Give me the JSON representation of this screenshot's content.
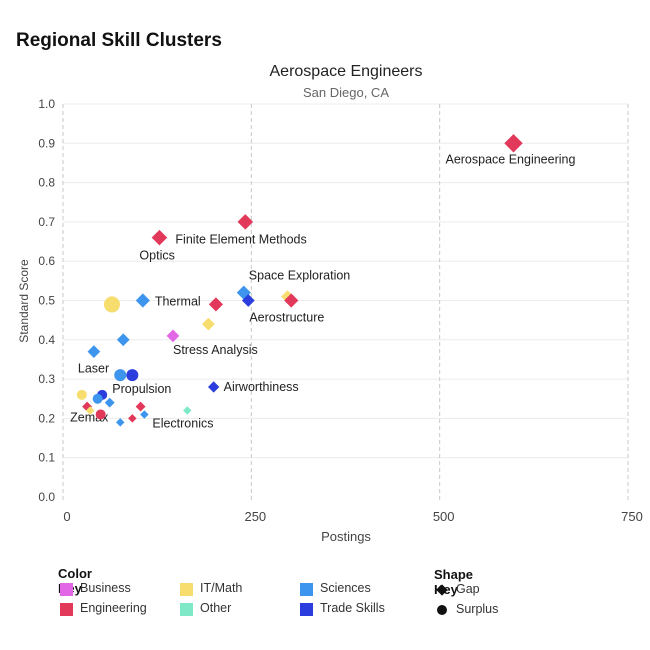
{
  "page_title": "Regional Skill Clusters",
  "chart_data": {
    "type": "scatter",
    "title": "Aerospace Engineers",
    "subtitle": "San Diego, CA",
    "xlabel": "Postings",
    "ylabel": "Standard Score",
    "xlim": [
      0,
      750
    ],
    "ylim": [
      0,
      1.0
    ],
    "xticks": [
      "0",
      "250",
      "500",
      "750"
    ],
    "yticks": [
      "0.0",
      "0.1",
      "0.2",
      "0.3",
      "0.4",
      "0.5",
      "0.6",
      "0.7",
      "0.8",
      "0.9",
      "1.0"
    ],
    "grid": "dashed vertical and horizontal",
    "colors": {
      "Business": "#e267e6",
      "Engineering": "#e2385a",
      "IT/Math": "#f7dd6e",
      "Other": "#7ee8c7",
      "Sciences": "#3d95ee",
      "Trade Skills": "#2b3ddd"
    },
    "points": [
      {
        "x": 598,
        "y": 0.9,
        "cat": "Engineering",
        "shape": "diamond",
        "size": 13,
        "label": "Aerospace Engineering"
      },
      {
        "x": 242,
        "y": 0.7,
        "cat": "Engineering",
        "shape": "diamond",
        "size": 11,
        "label": ""
      },
      {
        "x": 128,
        "y": 0.66,
        "cat": "Engineering",
        "shape": "diamond",
        "size": 11,
        "label": "Finite Element Methods"
      },
      {
        "x": 128,
        "y": 0.66,
        "cat": "Engineering",
        "shape": "none",
        "size": 0,
        "label": "Optics"
      },
      {
        "x": 65,
        "y": 0.49,
        "cat": "IT/Math",
        "shape": "circle",
        "size": 8,
        "label": ""
      },
      {
        "x": 106,
        "y": 0.5,
        "cat": "Sciences",
        "shape": "diamond",
        "size": 10,
        "label": "Thermal"
      },
      {
        "x": 203,
        "y": 0.49,
        "cat": "Engineering",
        "shape": "diamond",
        "size": 10,
        "label": ""
      },
      {
        "x": 193,
        "y": 0.44,
        "cat": "IT/Math",
        "shape": "diamond",
        "size": 9,
        "label": ""
      },
      {
        "x": 240,
        "y": 0.52,
        "cat": "Sciences",
        "shape": "diamond",
        "size": 10,
        "label": "Space Exploration"
      },
      {
        "x": 298,
        "y": 0.51,
        "cat": "IT/Math",
        "shape": "diamond",
        "size": 9,
        "label": ""
      },
      {
        "x": 303,
        "y": 0.5,
        "cat": "Engineering",
        "shape": "diamond",
        "size": 10,
        "label": ""
      },
      {
        "x": 246,
        "y": 0.5,
        "cat": "Trade Skills",
        "shape": "diamond",
        "size": 9,
        "label": "Aerostructure"
      },
      {
        "x": 146,
        "y": 0.41,
        "cat": "Business",
        "shape": "diamond",
        "size": 9,
        "label": "Stress Analysis"
      },
      {
        "x": 80,
        "y": 0.4,
        "cat": "Sciences",
        "shape": "diamond",
        "size": 9,
        "label": ""
      },
      {
        "x": 41,
        "y": 0.37,
        "cat": "Sciences",
        "shape": "diamond",
        "size": 9,
        "label": "Laser"
      },
      {
        "x": 76,
        "y": 0.31,
        "cat": "Sciences",
        "shape": "circle",
        "size": 6,
        "label": ""
      },
      {
        "x": 92,
        "y": 0.31,
        "cat": "Trade Skills",
        "shape": "circle",
        "size": 6,
        "label": "Propulsion"
      },
      {
        "x": 200,
        "y": 0.28,
        "cat": "Trade Skills",
        "shape": "diamond",
        "size": 8,
        "label": "Airworthiness"
      },
      {
        "x": 25,
        "y": 0.26,
        "cat": "IT/Math",
        "shape": "circle",
        "size": 5,
        "label": ""
      },
      {
        "x": 52,
        "y": 0.26,
        "cat": "Trade Skills",
        "shape": "circle",
        "size": 5,
        "label": ""
      },
      {
        "x": 46,
        "y": 0.25,
        "cat": "Sciences",
        "shape": "circle",
        "size": 5,
        "label": ""
      },
      {
        "x": 62,
        "y": 0.24,
        "cat": "Sciences",
        "shape": "diamond",
        "size": 7,
        "label": ""
      },
      {
        "x": 32,
        "y": 0.23,
        "cat": "Engineering",
        "shape": "diamond",
        "size": 7,
        "label": ""
      },
      {
        "x": 103,
        "y": 0.23,
        "cat": "Engineering",
        "shape": "diamond",
        "size": 7,
        "label": ""
      },
      {
        "x": 36,
        "y": 0.22,
        "cat": "IT/Math",
        "shape": "diamond",
        "size": 6,
        "label": "Zemax"
      },
      {
        "x": 50,
        "y": 0.21,
        "cat": "Engineering",
        "shape": "circle",
        "size": 5,
        "label": ""
      },
      {
        "x": 108,
        "y": 0.21,
        "cat": "Sciences",
        "shape": "diamond",
        "size": 6,
        "label": "Electronics"
      },
      {
        "x": 165,
        "y": 0.22,
        "cat": "Other",
        "shape": "diamond",
        "size": 6,
        "label": ""
      },
      {
        "x": 92,
        "y": 0.2,
        "cat": "Engineering",
        "shape": "diamond",
        "size": 6,
        "label": ""
      },
      {
        "x": 76,
        "y": 0.19,
        "cat": "Sciences",
        "shape": "diamond",
        "size": 6,
        "label": ""
      }
    ]
  },
  "color_key": {
    "title": "Color Key",
    "items": [
      {
        "label": "Business",
        "color": "#e267e6"
      },
      {
        "label": "Engineering",
        "color": "#e2385a"
      },
      {
        "label": "IT/Math",
        "color": "#f7dd6e"
      },
      {
        "label": "Other",
        "color": "#7ee8c7"
      },
      {
        "label": "Sciences",
        "color": "#3d95ee"
      },
      {
        "label": "Trade Skills",
        "color": "#2b3ddd"
      }
    ]
  },
  "shape_key": {
    "title": "Shape Key",
    "items": [
      {
        "label": "Gap",
        "icon": "diamond-icon"
      },
      {
        "label": "Surplus",
        "icon": "circle-icon"
      }
    ]
  }
}
